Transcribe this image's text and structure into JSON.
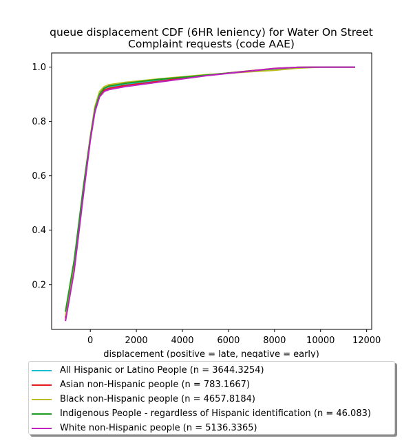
{
  "chart_data": {
    "type": "line",
    "title": [
      "queue displacement CDF (6HR leniency) for Water On Street",
      "Complaint  requests (code AAE)"
    ],
    "xlabel": "displacement (positive = late, negative = early)",
    "ylabel": "",
    "xlim": [
      -1680,
      12220
    ],
    "ylim": [
      0.035,
      1.052
    ],
    "xticks": [
      0,
      2000,
      4000,
      6000,
      8000,
      10000,
      12000
    ],
    "yticks": [
      0.2,
      0.4,
      0.6,
      0.8,
      1.0
    ],
    "xtick_labels": [
      "0",
      "2000",
      "4000",
      "6000",
      "8000",
      "10000",
      "12000"
    ],
    "ytick_labels": [
      "0.2",
      "0.4",
      "0.6",
      "0.8",
      "1.0"
    ],
    "grid": false,
    "legend_position": "below",
    "series": [
      {
        "name": "All Hispanic or Latino People (n = 3644.3254)",
        "color": "#17becf",
        "x": [
          -1080,
          -700,
          -300,
          0,
          200,
          400,
          600,
          800,
          1500,
          3000,
          5000,
          7000,
          8000,
          9000,
          10000,
          11500
        ],
        "y": [
          0.08,
          0.27,
          0.55,
          0.74,
          0.85,
          0.905,
          0.92,
          0.928,
          0.935,
          0.95,
          0.97,
          0.985,
          0.993,
          0.998,
          1.0,
          1.0
        ]
      },
      {
        "name": "Asian non-Hispanic people (n = 783.1667)",
        "color": "#e41a1c",
        "x": [
          -1080,
          -700,
          -300,
          0,
          200,
          400,
          600,
          800,
          1500,
          3000,
          5000,
          7000,
          8000,
          9000,
          10000,
          11500
        ],
        "y": [
          0.075,
          0.26,
          0.54,
          0.735,
          0.84,
          0.895,
          0.915,
          0.922,
          0.932,
          0.948,
          0.97,
          0.987,
          0.995,
          0.999,
          1.0,
          1.0
        ]
      },
      {
        "name": "Black non-Hispanic people (n = 4657.8184)",
        "color": "#bcbd22",
        "x": [
          -1080,
          -700,
          -300,
          0,
          200,
          400,
          600,
          800,
          1500,
          3000,
          5000,
          7000,
          8000,
          9000,
          10000,
          11500
        ],
        "y": [
          0.085,
          0.28,
          0.56,
          0.745,
          0.855,
          0.91,
          0.928,
          0.935,
          0.944,
          0.957,
          0.972,
          0.983,
          0.988,
          0.996,
          1.0,
          1.0
        ]
      },
      {
        "name": "Indigenous People - regardless of Hispanic identification (n = 46.083)",
        "color": "#1f9b1f",
        "x": [
          -1080,
          -700,
          -300,
          0,
          200,
          400,
          600,
          800,
          1500,
          3000,
          5000,
          7000,
          8000,
          9000,
          10000,
          11500
        ],
        "y": [
          0.1,
          0.29,
          0.56,
          0.74,
          0.845,
          0.9,
          0.922,
          0.93,
          0.94,
          0.955,
          0.97,
          0.986,
          0.994,
          0.999,
          1.0,
          1.0
        ]
      },
      {
        "name": "White non-Hispanic people (n = 5136.3365)",
        "color": "#c020c0",
        "x": [
          -1080,
          -700,
          -300,
          0,
          200,
          400,
          600,
          800,
          1500,
          3000,
          5000,
          7000,
          8000,
          9000,
          10000,
          11500
        ],
        "y": [
          0.065,
          0.25,
          0.53,
          0.73,
          0.835,
          0.89,
          0.91,
          0.917,
          0.928,
          0.945,
          0.968,
          0.986,
          0.995,
          0.999,
          1.0,
          1.0
        ]
      }
    ]
  }
}
